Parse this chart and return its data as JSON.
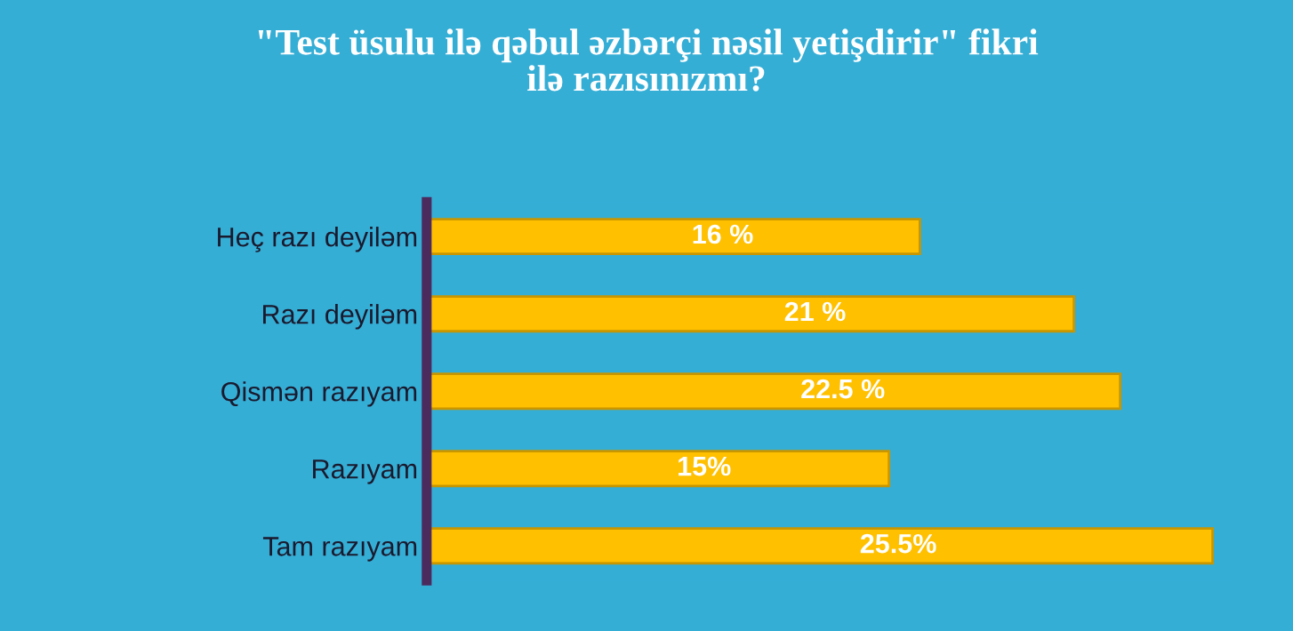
{
  "chart_data": {
    "type": "bar",
    "orientation": "horizontal",
    "title": "\"Test üsulu ilə qəbul əzbərçi nəsil yetişdirir\" fikri\nilə razısınızmı?",
    "categories": [
      "Heç razı deyiləm",
      "Razı deyiləm",
      "Qismən razıyam",
      "Razıyam",
      "Tam razıyam"
    ],
    "values": [
      16,
      21,
      22.5,
      15,
      25.5
    ],
    "value_labels": [
      "16 %",
      "21 %",
      "22.5 %",
      "15%",
      "25.5%"
    ],
    "color": "#ffc000",
    "grid": false,
    "legend": false
  }
}
